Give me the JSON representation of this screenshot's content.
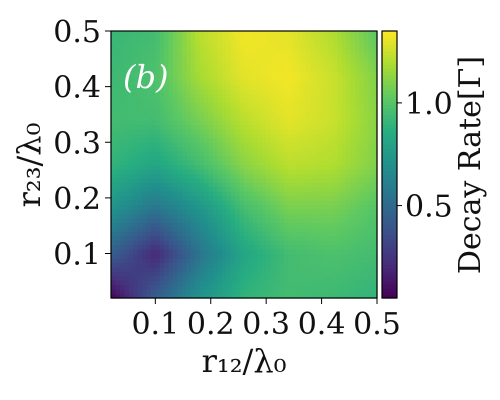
{
  "chart_data": {
    "type": "heatmap",
    "panel_label": "(b)",
    "xlabel": "r₁₂/λ₀",
    "ylabel": "r₂₃/λ₀",
    "xlim": [
      0.02,
      0.5
    ],
    "ylim": [
      0.02,
      0.5
    ],
    "x_ticks": [
      {
        "value": 0.1,
        "label": "0.1"
      },
      {
        "value": 0.2,
        "label": "0.2"
      },
      {
        "value": 0.3,
        "label": "0.3"
      },
      {
        "value": 0.4,
        "label": "0.4"
      },
      {
        "value": 0.5,
        "label": "0.5"
      }
    ],
    "y_ticks": [
      {
        "value": 0.1,
        "label": "0.1"
      },
      {
        "value": 0.2,
        "label": "0.2"
      },
      {
        "value": 0.3,
        "label": "0.3"
      },
      {
        "value": 0.4,
        "label": "0.4"
      },
      {
        "value": 0.5,
        "label": "0.5"
      }
    ],
    "colorbar": {
      "label": "Decay Rate[Γ]",
      "colormap": "viridis",
      "range": [
        0.05,
        1.35
      ],
      "ticks": [
        {
          "value": 0.5,
          "label": "0.5"
        },
        {
          "value": 1.0,
          "label": "1.0"
        }
      ]
    },
    "grid_x": [
      0.02,
      0.1,
      0.18,
      0.26,
      0.34,
      0.42,
      0.5
    ],
    "grid_y": [
      0.02,
      0.1,
      0.18,
      0.26,
      0.34,
      0.42,
      0.5
    ],
    "z": [
      [
        0.05,
        0.45,
        0.72,
        0.9,
        0.95,
        0.93,
        0.9
      ],
      [
        0.45,
        0.2,
        0.55,
        0.82,
        0.95,
        0.98,
        0.95
      ],
      [
        0.72,
        0.55,
        0.72,
        0.95,
        1.08,
        1.08,
        1.0
      ],
      [
        0.9,
        0.82,
        0.95,
        1.12,
        1.22,
        1.2,
        1.1
      ],
      [
        0.95,
        0.95,
        1.08,
        1.22,
        1.3,
        1.25,
        1.12
      ],
      [
        0.93,
        0.98,
        1.18,
        1.3,
        1.33,
        1.25,
        1.1
      ],
      [
        0.92,
        0.95,
        1.22,
        1.33,
        1.3,
        1.2,
        1.02
      ]
    ]
  }
}
